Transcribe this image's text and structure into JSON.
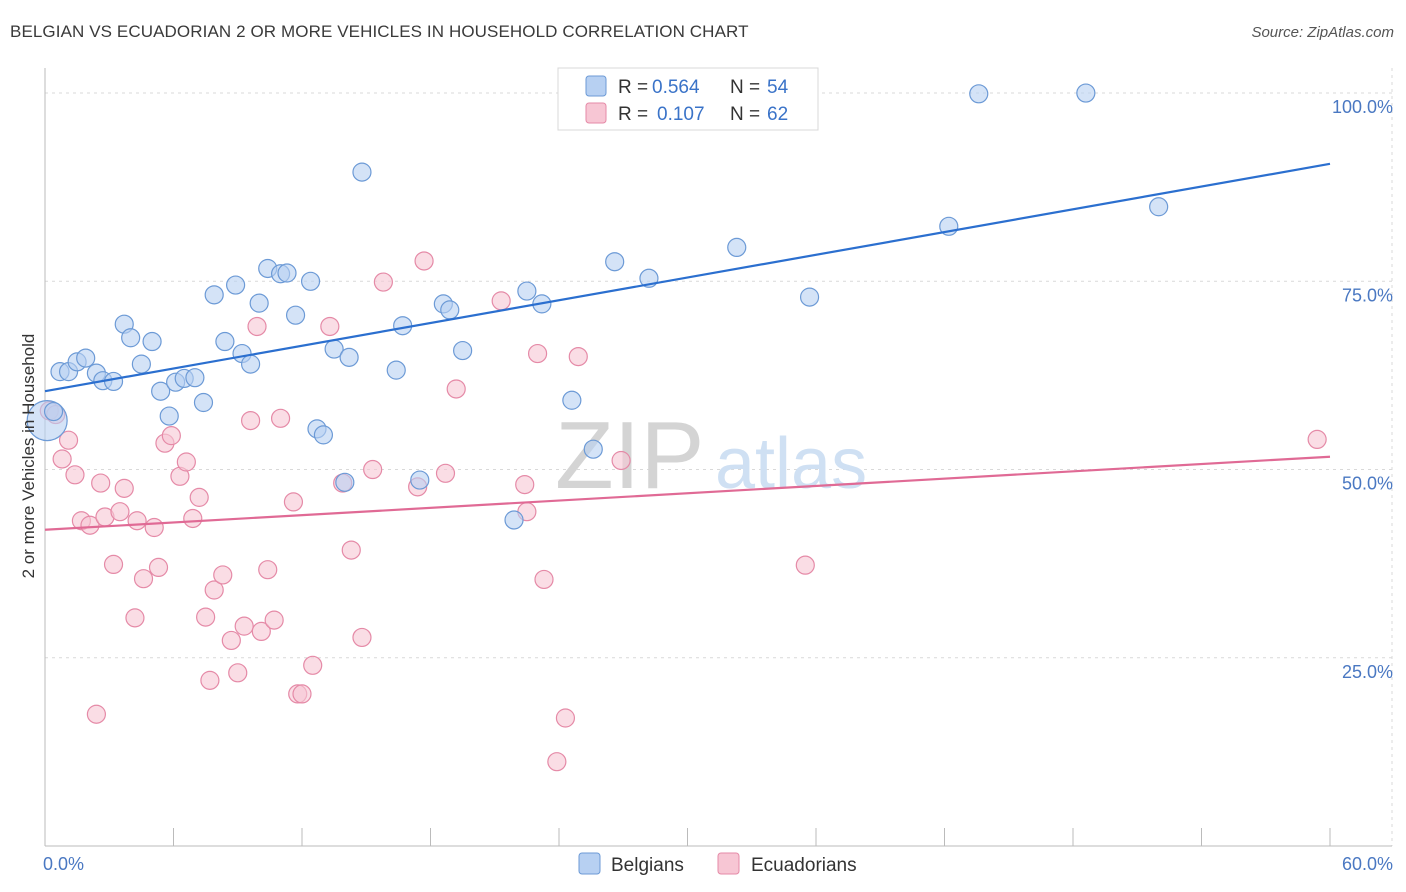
{
  "header": {
    "title": "BELGIAN VS ECUADORIAN 2 OR MORE VEHICLES IN HOUSEHOLD CORRELATION CHART",
    "source": "Source: ZipAtlas.com"
  },
  "watermark": {
    "part1": "ZIP",
    "part2": "atlas"
  },
  "colors": {
    "belgian_fill": "#b7d0f2",
    "belgian_stroke": "#6c9ad6",
    "belgian_line": "#2b6fcf",
    "ecuadorian_fill": "#f7c6d4",
    "ecuadorian_stroke": "#e58aa7",
    "ecuadorian_line": "#e06a95",
    "grid": "#d9d9d9",
    "tick_text": "#4a78c2"
  },
  "legend": {
    "rows": [
      {
        "r_label": "R =",
        "r_value": "0.564",
        "n_label": "N =",
        "n_value": "54"
      },
      {
        "r_label": "R =",
        "r_value": "0.107",
        "n_label": "N =",
        "n_value": "62"
      }
    ]
  },
  "bottom_legend": {
    "items": [
      "Belgians",
      "Ecuadorians"
    ]
  },
  "chart_data": {
    "type": "scatter",
    "title": "BELGIAN VS ECUADORIAN 2 OR MORE VEHICLES IN HOUSEHOLD CORRELATION CHART",
    "xlabel": "",
    "ylabel": "2 or more Vehicles in Household",
    "xlim": [
      0,
      60
    ],
    "ylim": [
      0,
      102
    ],
    "x_tick_labels": [
      "0.0%",
      "60.0%"
    ],
    "y_ticks": [
      25,
      50,
      75,
      100
    ],
    "y_tick_labels": [
      "25.0%",
      "50.0%",
      "75.0%",
      "100.0%"
    ],
    "series": [
      {
        "name": "Belgians",
        "r": 0.564,
        "n": 54,
        "trend": {
          "x": [
            0,
            60
          ],
          "y": [
            60.4,
            90.6
          ]
        },
        "points": [
          {
            "x": 0.1,
            "y": 56.5,
            "big": true
          },
          {
            "x": 0.4,
            "y": 57.7
          },
          {
            "x": 0.7,
            "y": 63.0
          },
          {
            "x": 1.1,
            "y": 63.0
          },
          {
            "x": 1.5,
            "y": 64.3
          },
          {
            "x": 1.9,
            "y": 64.8
          },
          {
            "x": 2.4,
            "y": 62.8
          },
          {
            "x": 2.7,
            "y": 61.8
          },
          {
            "x": 3.2,
            "y": 61.7
          },
          {
            "x": 3.7,
            "y": 69.3
          },
          {
            "x": 4.0,
            "y": 67.5
          },
          {
            "x": 4.5,
            "y": 64.0
          },
          {
            "x": 5.0,
            "y": 67.0
          },
          {
            "x": 5.4,
            "y": 60.4
          },
          {
            "x": 5.8,
            "y": 57.1
          },
          {
            "x": 6.1,
            "y": 61.6
          },
          {
            "x": 6.5,
            "y": 62.1
          },
          {
            "x": 7.0,
            "y": 62.2
          },
          {
            "x": 7.4,
            "y": 58.9
          },
          {
            "x": 7.9,
            "y": 73.2
          },
          {
            "x": 8.4,
            "y": 67.0
          },
          {
            "x": 8.9,
            "y": 74.5
          },
          {
            "x": 9.2,
            "y": 65.4
          },
          {
            "x": 9.6,
            "y": 64.0
          },
          {
            "x": 10.0,
            "y": 72.1
          },
          {
            "x": 10.4,
            "y": 76.7
          },
          {
            "x": 11.0,
            "y": 76.0
          },
          {
            "x": 11.3,
            "y": 76.1
          },
          {
            "x": 11.7,
            "y": 70.5
          },
          {
            "x": 12.4,
            "y": 75.0
          },
          {
            "x": 12.7,
            "y": 55.4
          },
          {
            "x": 13.0,
            "y": 54.6
          },
          {
            "x": 13.5,
            "y": 66.0
          },
          {
            "x": 14.0,
            "y": 48.3
          },
          {
            "x": 14.2,
            "y": 64.9
          },
          {
            "x": 14.8,
            "y": 89.5
          },
          {
            "x": 16.4,
            "y": 63.2
          },
          {
            "x": 16.7,
            "y": 69.1
          },
          {
            "x": 17.5,
            "y": 48.6
          },
          {
            "x": 18.6,
            "y": 72.0
          },
          {
            "x": 18.9,
            "y": 71.2
          },
          {
            "x": 19.5,
            "y": 65.8
          },
          {
            "x": 21.9,
            "y": 43.3
          },
          {
            "x": 22.5,
            "y": 73.7
          },
          {
            "x": 23.2,
            "y": 72.0
          },
          {
            "x": 24.6,
            "y": 59.2
          },
          {
            "x": 25.6,
            "y": 52.7
          },
          {
            "x": 26.6,
            "y": 77.6
          },
          {
            "x": 28.2,
            "y": 75.4
          },
          {
            "x": 32.3,
            "y": 79.5
          },
          {
            "x": 35.7,
            "y": 72.9
          },
          {
            "x": 42.2,
            "y": 82.3
          },
          {
            "x": 43.6,
            "y": 99.9
          },
          {
            "x": 48.6,
            "y": 100.0
          },
          {
            "x": 52.0,
            "y": 84.9
          }
        ]
      },
      {
        "name": "Ecuadorians",
        "r": 0.107,
        "n": 62,
        "trend": {
          "x": [
            0,
            60
          ],
          "y": [
            42.0,
            51.7
          ]
        },
        "points": [
          {
            "x": 0.2,
            "y": 57.8
          },
          {
            "x": 0.5,
            "y": 57.3
          },
          {
            "x": 0.8,
            "y": 51.4
          },
          {
            "x": 1.1,
            "y": 53.9
          },
          {
            "x": 1.4,
            "y": 49.3
          },
          {
            "x": 1.7,
            "y": 43.2
          },
          {
            "x": 2.1,
            "y": 42.6
          },
          {
            "x": 2.4,
            "y": 17.5
          },
          {
            "x": 2.6,
            "y": 48.2
          },
          {
            "x": 2.8,
            "y": 43.7
          },
          {
            "x": 3.2,
            "y": 37.4
          },
          {
            "x": 3.5,
            "y": 44.4
          },
          {
            "x": 3.7,
            "y": 47.5
          },
          {
            "x": 4.2,
            "y": 30.3
          },
          {
            "x": 4.3,
            "y": 43.2
          },
          {
            "x": 4.6,
            "y": 35.5
          },
          {
            "x": 5.1,
            "y": 42.3
          },
          {
            "x": 5.3,
            "y": 37.0
          },
          {
            "x": 5.6,
            "y": 53.5
          },
          {
            "x": 5.9,
            "y": 54.5
          },
          {
            "x": 6.3,
            "y": 49.1
          },
          {
            "x": 6.6,
            "y": 51.0
          },
          {
            "x": 6.9,
            "y": 43.5
          },
          {
            "x": 7.2,
            "y": 46.3
          },
          {
            "x": 7.5,
            "y": 30.4
          },
          {
            "x": 7.7,
            "y": 22.0
          },
          {
            "x": 7.9,
            "y": 34.0
          },
          {
            "x": 8.3,
            "y": 36.0
          },
          {
            "x": 8.7,
            "y": 27.3
          },
          {
            "x": 9.0,
            "y": 23.0
          },
          {
            "x": 9.3,
            "y": 29.2
          },
          {
            "x": 9.6,
            "y": 56.5
          },
          {
            "x": 9.9,
            "y": 69.0
          },
          {
            "x": 10.1,
            "y": 28.5
          },
          {
            "x": 10.4,
            "y": 36.7
          },
          {
            "x": 10.7,
            "y": 30.0
          },
          {
            "x": 11.0,
            "y": 56.8
          },
          {
            "x": 11.6,
            "y": 45.7
          },
          {
            "x": 11.8,
            "y": 20.2
          },
          {
            "x": 12.0,
            "y": 20.2
          },
          {
            "x": 12.5,
            "y": 24.0
          },
          {
            "x": 13.3,
            "y": 69.0
          },
          {
            "x": 13.9,
            "y": 48.2
          },
          {
            "x": 14.3,
            "y": 39.3
          },
          {
            "x": 14.8,
            "y": 27.7
          },
          {
            "x": 15.3,
            "y": 50.0
          },
          {
            "x": 15.8,
            "y": 74.9
          },
          {
            "x": 17.4,
            "y": 47.7
          },
          {
            "x": 17.7,
            "y": 77.7
          },
          {
            "x": 18.7,
            "y": 49.5
          },
          {
            "x": 19.2,
            "y": 60.7
          },
          {
            "x": 21.3,
            "y": 72.4
          },
          {
            "x": 22.4,
            "y": 48.0
          },
          {
            "x": 22.5,
            "y": 44.4
          },
          {
            "x": 23.0,
            "y": 65.4
          },
          {
            "x": 23.3,
            "y": 35.4
          },
          {
            "x": 23.9,
            "y": 11.2
          },
          {
            "x": 24.3,
            "y": 17.0
          },
          {
            "x": 24.9,
            "y": 65.0
          },
          {
            "x": 26.9,
            "y": 51.2
          },
          {
            "x": 35.5,
            "y": 37.3
          },
          {
            "x": 59.4,
            "y": 54.0
          }
        ]
      }
    ]
  }
}
